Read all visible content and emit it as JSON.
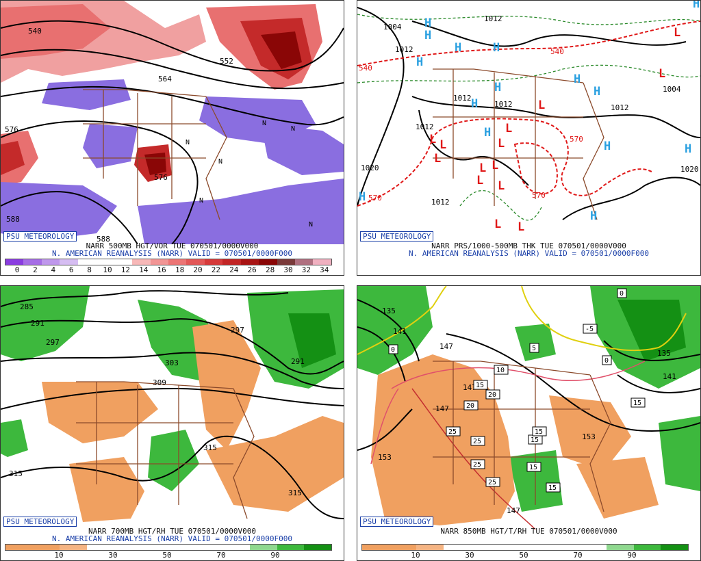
{
  "panels": {
    "tl": {
      "badge": "PSU METEOROLOGY",
      "line1": "NARR 500MB HGT/VOR TUE 070501/0000V000",
      "line2": "N. AMERICAN REANALYSIS (NARR) VALID = 070501/0000F000",
      "scale_ticks": [
        "0",
        "2",
        "4",
        "6",
        "8",
        "10",
        "12",
        "14",
        "16",
        "18",
        "20",
        "22",
        "24",
        "26",
        "28",
        "30",
        "32",
        "34"
      ],
      "contour_labels": [
        "540",
        "552",
        "564",
        "576",
        "576",
        "588",
        "588"
      ],
      "n_marks": [
        "N",
        "N",
        "N",
        "N",
        "N",
        "N"
      ]
    },
    "tr": {
      "badge": "PSU METEOROLOGY",
      "line1": "NARR PRS/1000-500MB THK TUE 070501/0000V000",
      "line2": "N. AMERICAN REANALYSIS (NARR) VALID = 070501/0000F000",
      "contour_labels": [
        "1004",
        "1012",
        "1012",
        "1012",
        "1012",
        "1020",
        "1012",
        "1004",
        "1012",
        "1020",
        "1012"
      ],
      "thickness_labels": [
        "540",
        "540",
        "570",
        "570",
        "570"
      ],
      "h_marks": [
        "H",
        "H",
        "H",
        "H",
        "H",
        "H",
        "H",
        "H",
        "H",
        "H",
        "H",
        "H",
        "H",
        "H",
        "H"
      ],
      "l_marks": [
        "L",
        "L",
        "L",
        "L",
        "L",
        "L",
        "L",
        "L",
        "L",
        "L",
        "L",
        "L",
        "L",
        "L"
      ]
    },
    "bl": {
      "badge": "PSU METEOROLOGY",
      "line1": "NARR 700MB HGT/RH TUE 070501/0000V000",
      "line2": "N. AMERICAN REANALYSIS (NARR) VALID = 070501/0000F000",
      "scale_ticks": [
        "10",
        "30",
        "50",
        "70",
        "90"
      ],
      "contour_labels": [
        "285",
        "291",
        "297",
        "303",
        "309",
        "297",
        "291",
        "315",
        "315",
        "315"
      ]
    },
    "br": {
      "badge": "PSU METEOROLOGY",
      "line1": "NARR 850MB HGT/T/RH TUE 070501/0000V000",
      "scale_ticks": [
        "10",
        "30",
        "50",
        "70",
        "90"
      ],
      "contour_labels": [
        "135",
        "141",
        "147",
        "147",
        "147",
        "153",
        "153",
        "135",
        "141",
        "147"
      ],
      "temp_box_labels": [
        "15",
        "15",
        "20",
        "20",
        "25",
        "25",
        "25",
        "25",
        "15",
        "15",
        "15",
        "15",
        "10",
        "5",
        "-5",
        "0",
        "0",
        "0"
      ]
    }
  },
  "colors": {
    "vorticity_scale": [
      "#8a3ce0",
      "#a66de6",
      "#bf97ec",
      "#d6bdf2",
      "#ffffff",
      "#ffffff",
      "#ffffff",
      "#f7b8b8",
      "#f29595",
      "#ec7575",
      "#e35757",
      "#d63a3a",
      "#c22525",
      "#a81313",
      "#8a0606",
      "#7a3a3a",
      "#b07080",
      "#f0b0c0"
    ],
    "rh_scale": [
      "#f0a060",
      "#f0a060",
      "#f5b483",
      "#ffffff",
      "#ffffff",
      "#ffffff",
      "#ffffff",
      "#ffffff",
      "#ffffff",
      "#8fd88f",
      "#3db83d",
      "#149014"
    ],
    "state_lines": "#8b4a2b",
    "height_contour": "#000000",
    "thickness_contour": "#e01818",
    "dashed_green": "#2a8a2a",
    "h_color": "#2aa0e0",
    "l_color": "#e01818",
    "temp_line": "#e0506a"
  }
}
